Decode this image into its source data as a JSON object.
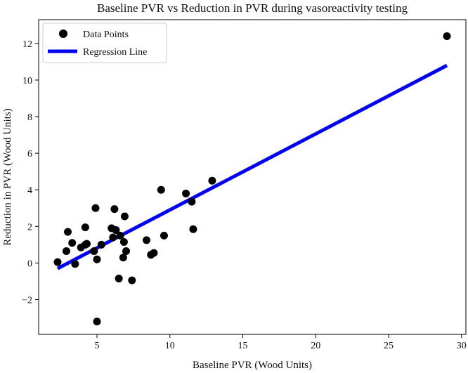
{
  "chart_data": {
    "type": "scatter",
    "title": "Baseline PVR vs Reduction in PVR during vasoreactivity testing",
    "xlabel": "Baseline PVR (Wood Units)",
    "ylabel": "Reduction in PVR (Wood Units)",
    "xlim": [
      1.0,
      30.3
    ],
    "ylim": [
      -3.9,
      13.3
    ],
    "xticks": [
      5,
      10,
      15,
      20,
      25,
      30
    ],
    "yticks": [
      -2,
      0,
      2,
      4,
      6,
      8,
      10,
      12
    ],
    "grid": false,
    "legend_position": "top-left",
    "series": [
      {
        "name": "Data Points",
        "kind": "scatter",
        "color": "#000000",
        "points": [
          [
            2.3,
            0.05
          ],
          [
            2.9,
            0.65
          ],
          [
            3.0,
            1.7
          ],
          [
            3.3,
            1.1
          ],
          [
            3.5,
            -0.05
          ],
          [
            3.9,
            0.85
          ],
          [
            4.2,
            1.0
          ],
          [
            4.2,
            1.95
          ],
          [
            4.3,
            1.05
          ],
          [
            4.8,
            0.65
          ],
          [
            4.9,
            3.0
          ],
          [
            5.0,
            0.2
          ],
          [
            5.0,
            -3.2
          ],
          [
            5.3,
            1.0
          ],
          [
            6.0,
            1.9
          ],
          [
            6.1,
            1.4
          ],
          [
            6.2,
            2.95
          ],
          [
            6.3,
            1.8
          ],
          [
            6.5,
            -0.85
          ],
          [
            6.6,
            1.5
          ],
          [
            6.8,
            0.3
          ],
          [
            6.85,
            1.15
          ],
          [
            6.9,
            2.55
          ],
          [
            7.0,
            0.65
          ],
          [
            7.4,
            -0.95
          ],
          [
            8.4,
            1.25
          ],
          [
            8.7,
            0.45
          ],
          [
            8.9,
            0.55
          ],
          [
            9.4,
            4.0
          ],
          [
            9.6,
            1.5
          ],
          [
            11.1,
            3.8
          ],
          [
            11.5,
            3.35
          ],
          [
            11.6,
            1.85
          ],
          [
            12.9,
            4.5
          ],
          [
            29.0,
            12.4
          ]
        ]
      },
      {
        "name": "Regression Line",
        "kind": "line",
        "color": "#0000ee",
        "points": [
          [
            2.3,
            -0.3
          ],
          [
            29.0,
            10.8
          ]
        ]
      }
    ]
  }
}
